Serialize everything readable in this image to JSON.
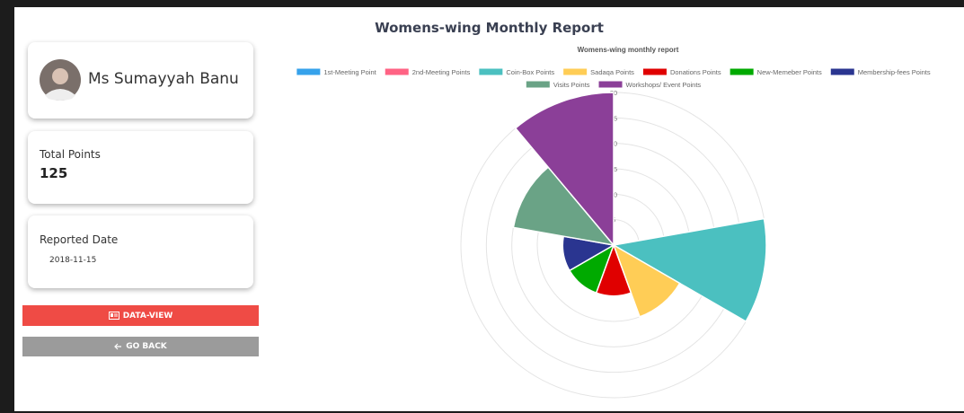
{
  "page_title": "Womens-wing Monthly Report",
  "profile": {
    "name": "Ms Sumayyah Banu"
  },
  "points_card": {
    "label": "Total Points",
    "value": "125"
  },
  "date_card": {
    "label": "Reported Date",
    "value": "2018-11-15"
  },
  "buttons": {
    "data_view": "DATA-VIEW",
    "go_back": "GO BACK"
  },
  "chart_data": {
    "type": "polarArea",
    "title": "Womens-wing monthly report",
    "categories": [
      "1st-Meeting Point",
      "2nd-Meeting Points",
      "Coin-Box Points",
      "Sadaqa Points",
      "Donations Points",
      "New-Memeber Points",
      "Membership-fees Points",
      "Visits Points",
      "Workshops/ Event Points"
    ],
    "values": [
      0,
      0,
      30,
      15,
      10,
      10,
      10,
      20,
      30
    ],
    "colors": [
      "#36a2eb",
      "#ff6384",
      "#4bc0c0",
      "#ffcd56",
      "#e00000",
      "#00aa00",
      "#2a3590",
      "#6aa386",
      "#8b3f98"
    ],
    "rlim": [
      0,
      30
    ],
    "rticks": [
      5,
      10,
      15,
      20,
      25,
      30
    ],
    "grid": true,
    "legend": "top"
  }
}
